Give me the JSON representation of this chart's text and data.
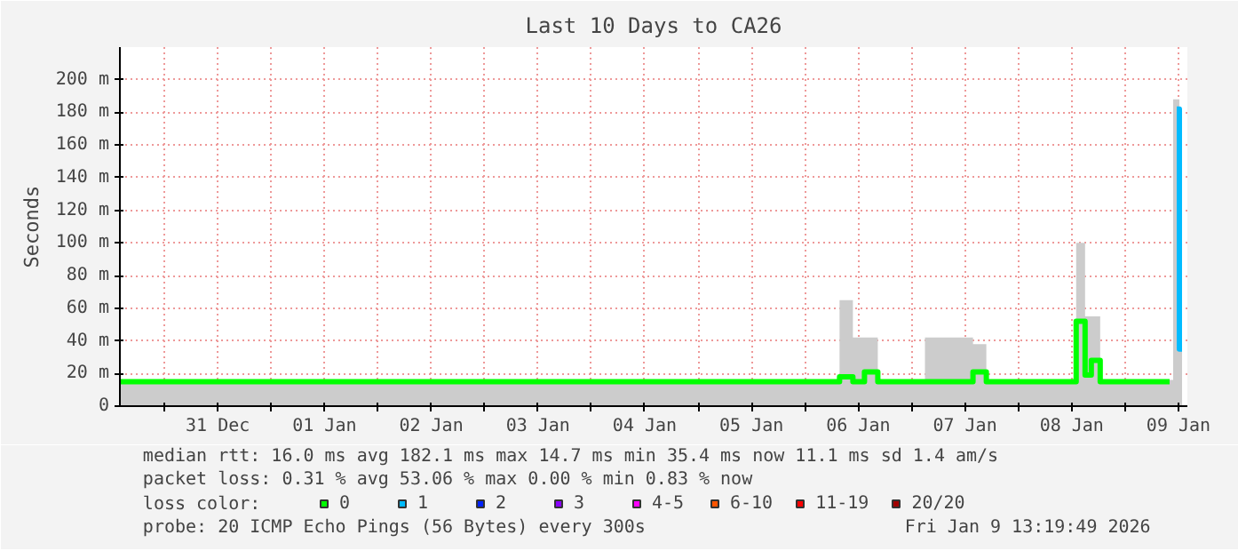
{
  "chart_data": {
    "type": "step",
    "title": "Last 10 Days to CA26",
    "ylabel": "Seconds",
    "x": [
      "2025-12-30T14:00",
      "2025-12-31T00:00",
      "2025-12-31T12:00",
      "2026-01-01T00:00",
      "2026-01-01T12:00",
      "2026-01-02T00:00",
      "2026-01-02T12:00",
      "2026-01-03T00:00",
      "2026-01-03T12:00",
      "2026-01-04T00:00",
      "2026-01-04T12:00",
      "2026-01-05T00:00",
      "2026-01-05T12:00",
      "2026-01-06T06:00",
      "2026-01-06T09:36",
      "2026-01-06T12:00",
      "2026-01-06T14:48",
      "2026-01-06T18:00",
      "2026-01-07T12:00",
      "2026-01-07T15:36",
      "2026-01-07T18:00",
      "2026-01-08T12:00",
      "2026-01-08T14:00",
      "2026-01-08T16:00",
      "2026-01-08T16:48",
      "2026-01-08T20:00",
      "2026-01-09T10:00",
      "2026-01-09T11:36",
      "2026-01-09T12:48"
    ],
    "series": [
      {
        "type": "area",
        "color": "#cccccc",
        "values": [
          16,
          16,
          16,
          16,
          16,
          16,
          16,
          16,
          16,
          16,
          16,
          16,
          16,
          16,
          65,
          42,
          42,
          16,
          42,
          38,
          16,
          16,
          100,
          55,
          55,
          16,
          16,
          188,
          60
        ]
      },
      {
        "name": "0",
        "color": "#00ff00",
        "values": [
          15,
          15,
          15,
          15,
          15,
          15,
          15,
          15,
          15,
          15,
          15,
          15,
          15,
          15,
          18,
          15,
          21,
          15,
          15,
          21,
          15,
          15,
          52,
          19,
          28,
          15,
          15,
          null,
          null
        ]
      },
      {
        "name": "1",
        "color": "#00bbff",
        "values": [
          null,
          null,
          null,
          null,
          null,
          null,
          null,
          null,
          null,
          null,
          null,
          null,
          null,
          null,
          null,
          null,
          null,
          null,
          null,
          null,
          null,
          null,
          null,
          null,
          null,
          null,
          null,
          182,
          35
        ]
      },
      {
        "name": "2",
        "color": "#0022ff",
        "values": [
          null,
          null,
          null,
          null,
          null,
          null,
          null,
          null,
          null,
          null,
          null,
          null,
          null,
          null,
          null,
          null,
          null,
          null,
          null,
          null,
          null,
          null,
          null,
          null,
          null,
          null,
          null,
          null,
          null
        ]
      },
      {
        "name": "3",
        "color": "#8a00ff",
        "values": [
          null,
          null,
          null,
          null,
          null,
          null,
          null,
          null,
          null,
          null,
          null,
          null,
          null,
          null,
          null,
          null,
          null,
          null,
          null,
          null,
          null,
          null,
          null,
          null,
          null,
          null,
          null,
          null,
          null
        ]
      },
      {
        "name": "4-5",
        "color": "#ff00ff",
        "values": [
          null,
          null,
          null,
          null,
          null,
          null,
          null,
          null,
          null,
          null,
          null,
          null,
          null,
          null,
          null,
          null,
          null,
          null,
          null,
          null,
          null,
          null,
          null,
          null,
          null,
          null,
          null,
          null,
          null
        ]
      },
      {
        "name": "6-10",
        "color": "#ff5500",
        "values": [
          null,
          null,
          null,
          null,
          null,
          null,
          null,
          null,
          null,
          null,
          null,
          null,
          null,
          null,
          null,
          null,
          null,
          null,
          null,
          null,
          null,
          null,
          null,
          null,
          null,
          null,
          null,
          null,
          null
        ]
      },
      {
        "name": "11-19",
        "color": "#ff0000",
        "values": [
          null,
          null,
          null,
          null,
          null,
          null,
          null,
          null,
          null,
          null,
          null,
          null,
          null,
          null,
          null,
          null,
          null,
          null,
          null,
          null,
          null,
          null,
          null,
          null,
          null,
          null,
          null,
          null,
          null
        ]
      },
      {
        "name": "20/20",
        "color": "#a10000",
        "values": [
          null,
          null,
          null,
          null,
          null,
          null,
          null,
          null,
          null,
          null,
          null,
          null,
          null,
          null,
          null,
          null,
          null,
          null,
          null,
          null,
          null,
          null,
          null,
          null,
          null,
          null,
          null,
          null,
          null
        ]
      }
    ],
    "legend_title": "loss color:",
    "legend": "bottom",
    "grid": true,
    "line_style": "solid",
    "xlim": [
      "2025-12-30T14:00",
      "2026-01-09T14:00"
    ],
    "xticks": [
      {
        "value": "2025-12-31T00:00",
        "label": null
      },
      {
        "value": "2025-12-31T12:00",
        "label": "31 Dec"
      },
      {
        "value": "2026-01-01T00:00",
        "label": null
      },
      {
        "value": "2026-01-01T12:00",
        "label": "01 Jan"
      },
      {
        "value": "2026-01-02T00:00",
        "label": null
      },
      {
        "value": "2026-01-02T12:00",
        "label": "02 Jan"
      },
      {
        "value": "2026-01-03T00:00",
        "label": null
      },
      {
        "value": "2026-01-03T12:00",
        "label": "03 Jan"
      },
      {
        "value": "2026-01-04T00:00",
        "label": null
      },
      {
        "value": "2026-01-04T12:00",
        "label": "04 Jan"
      },
      {
        "value": "2026-01-05T00:00",
        "label": null
      },
      {
        "value": "2026-01-05T12:00",
        "label": "05 Jan"
      },
      {
        "value": "2026-01-06T00:00",
        "label": null
      },
      {
        "value": "2026-01-06T12:00",
        "label": "06 Jan"
      },
      {
        "value": "2026-01-07T00:00",
        "label": null
      },
      {
        "value": "2026-01-07T12:00",
        "label": "07 Jan"
      },
      {
        "value": "2026-01-08T00:00",
        "label": null
      },
      {
        "value": "2026-01-08T12:00",
        "label": "08 Jan"
      },
      {
        "value": "2026-01-09T00:00",
        "label": null
      },
      {
        "value": "2026-01-09T12:00",
        "label": "09 Jan"
      }
    ],
    "ylim": [
      0,
      220
    ],
    "yticks": [
      0,
      {
        "value": 20,
        "label": "20 m"
      },
      {
        "value": 40,
        "label": "40 m"
      },
      {
        "value": 60,
        "label": "60 m"
      },
      {
        "value": 80,
        "label": "80 m"
      },
      {
        "value": 100,
        "label": "100 m"
      },
      {
        "value": 120,
        "label": "120 m"
      },
      {
        "value": 140,
        "label": "140 m"
      },
      {
        "value": 160,
        "label": "160 m"
      },
      {
        "value": 180,
        "label": "180 m"
      },
      {
        "value": 200,
        "label": "200 m"
      }
    ],
    "annotations": [
      "median rtt:  16.0 ms avg  182.1 ms max  14.7 ms min  35.4 ms now  11.1 ms sd  1.4   am/s",
      "packet loss: 0.31 % avg  53.06 % max  0.00 % min  0.83 % now",
      "probe:       20 ICMP Echo Pings (56 Bytes) every 300s",
      "Fri Jan  9 13:19:49 2026"
    ]
  }
}
